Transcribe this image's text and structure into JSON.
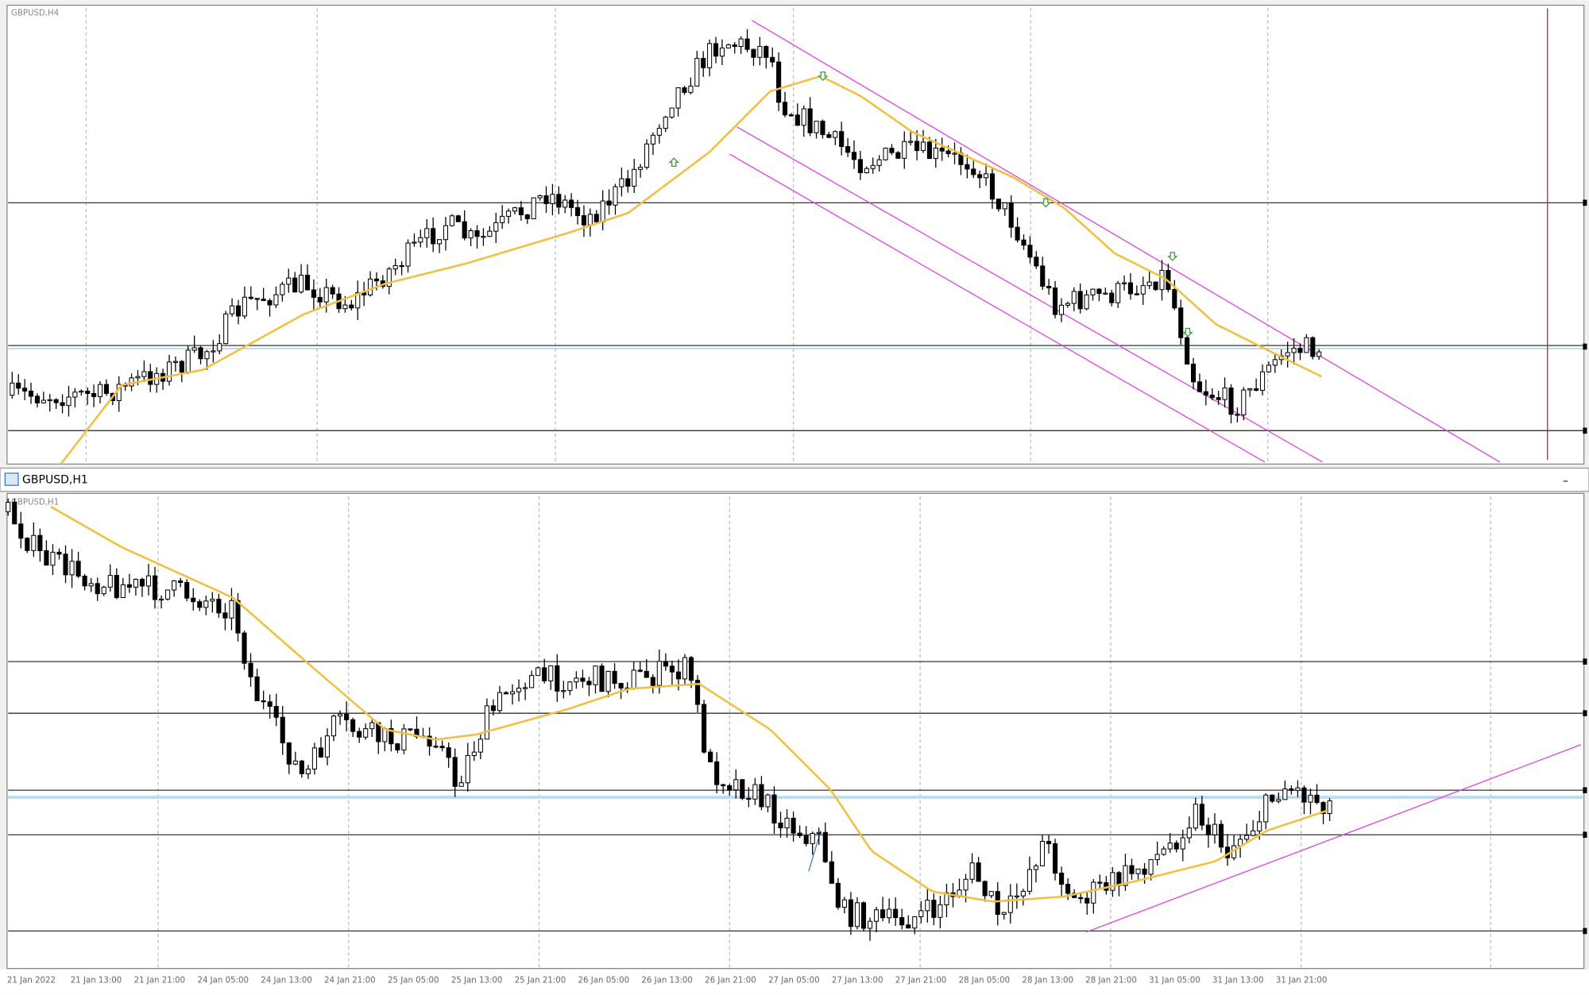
{
  "top_chart": {
    "title": "GBPUSD,H4"
  },
  "window": {
    "title": "GBPUSD,H1",
    "minimize": "–"
  },
  "bottom_chart": {
    "title": "GBPUSD,H1",
    "time_labels": [
      "21 Jan 2022",
      "21 Jan 13:00",
      "21 Jan 21:00",
      "24 Jan 05:00",
      "24 Jan 13:00",
      "24 Jan 21:00",
      "25 Jan 05:00",
      "25 Jan 13:00",
      "25 Jan 21:00",
      "26 Jan 05:00",
      "26 Jan 13:00",
      "26 Jan 21:00",
      "27 Jan 05:00",
      "27 Jan 13:00",
      "27 Jan 21:00",
      "28 Jan 05:00",
      "28 Jan 13:00",
      "28 Jan 21:00",
      "31 Jan 05:00",
      "31 Jan 13:00",
      "31 Jan 21:00"
    ]
  }
}
